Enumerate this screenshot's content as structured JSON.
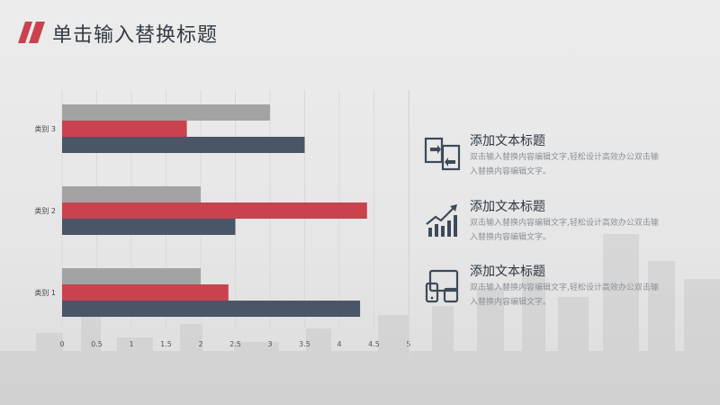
{
  "title": "单击输入替换标题",
  "colors": {
    "accent": "#c9424e",
    "dark": "#4a5568",
    "gray": "#a3a3a3",
    "text": "#333a44"
  },
  "chart_data": {
    "type": "bar",
    "orientation": "horizontal",
    "categories": [
      "类别 1",
      "类别 2",
      "类别 3"
    ],
    "series": [
      {
        "name": "",
        "color": "#4a5568",
        "values": [
          4.3,
          2.5,
          3.5
        ]
      },
      {
        "name": "",
        "color": "#c9424e",
        "values": [
          2.4,
          4.4,
          1.8
        ]
      },
      {
        "name": "",
        "color": "#a3a3a3",
        "values": [
          2.0,
          2.0,
          3.0
        ]
      }
    ],
    "xlim": [
      0,
      5
    ],
    "x_ticks": [
      "0",
      "0.5",
      "1",
      "1.5",
      "2",
      "2.5",
      "3",
      "3.5",
      "4",
      "4.5",
      "5"
    ],
    "grid": true,
    "legend": "none"
  },
  "info_items": [
    {
      "icon": "file-transfer-icon",
      "heading": "添加文本标题",
      "desc": "双击输入替换内容编辑文字,轻松设计高效办公双击输入替换内容编辑文字。"
    },
    {
      "icon": "growth-chart-icon",
      "heading": "添加文本标题",
      "desc": "双击输入替换内容编辑文字,轻松设计高效办公双击输入替换内容编辑文字。"
    },
    {
      "icon": "devices-icon",
      "heading": "添加文本标题",
      "desc": "双击输入替换内容编辑文字,轻松设计高效办公双击输入替换内容编辑文字。"
    }
  ]
}
